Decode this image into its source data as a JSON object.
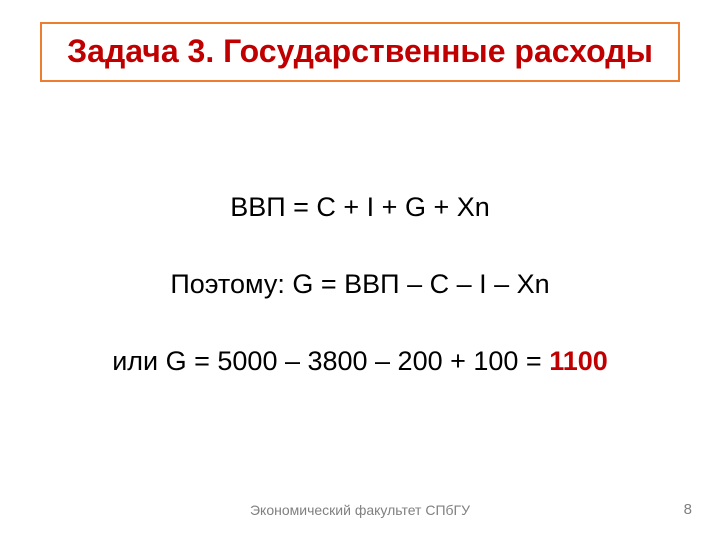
{
  "title": {
    "text": "Задача 3. Государственные расходы",
    "color": "#c00000",
    "border_color": "#ed7d31",
    "fontsize": 32,
    "fontweight": "bold"
  },
  "lines": {
    "eq1": "ВВП = С + I + G + Xn",
    "eq2": "Поэтому: G = ВВП – С – I – Xn",
    "eq3_prefix": "или  G = 5000 – 3800 – 200 + 100 = ",
    "answer": "1100",
    "answer_color": "#c00000",
    "fontsize": 27
  },
  "footer": {
    "text": "Экономический факультет СПбГУ",
    "color": "#808080",
    "fontsize": 14
  },
  "page": {
    "number": "8",
    "color": "#808080",
    "fontsize": 15
  },
  "background_color": "#ffffff"
}
